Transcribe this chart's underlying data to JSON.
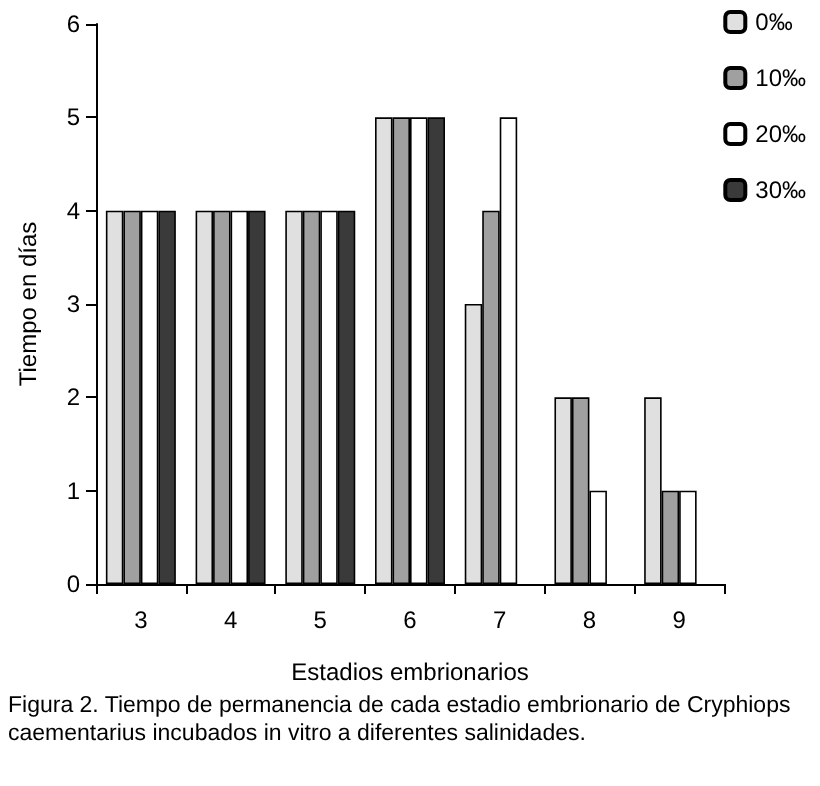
{
  "chart_data": {
    "type": "bar",
    "xlabel": "Estadios embrionarios",
    "ylabel": "Tiempo en días",
    "categories": [
      "3",
      "4",
      "5",
      "6",
      "7",
      "8",
      "9"
    ],
    "series": [
      {
        "name": "0‰",
        "color": "#e0e0e0",
        "values": [
          4,
          4,
          4,
          5,
          3,
          2,
          2
        ]
      },
      {
        "name": "10‰",
        "color": "#a0a0a0",
        "values": [
          4,
          4,
          4,
          5,
          4,
          2,
          1
        ]
      },
      {
        "name": "20‰",
        "color": "#ffffff",
        "values": [
          4,
          4,
          4,
          5,
          5,
          1,
          1
        ]
      },
      {
        "name": "30‰",
        "color": "#3a3a3a",
        "values": [
          4,
          4,
          4,
          5,
          null,
          null,
          null
        ]
      }
    ],
    "ylim": [
      0,
      6
    ],
    "yticks": [
      0,
      1,
      2,
      3,
      4,
      5,
      6
    ],
    "grid": false,
    "legend": "top right",
    "annotations": [
      "Figura 2. Tiempo de permanencia de cada estadio embrionario de Cryphiops caementarius incubados in vitro  a diferentes salinidades."
    ]
  }
}
